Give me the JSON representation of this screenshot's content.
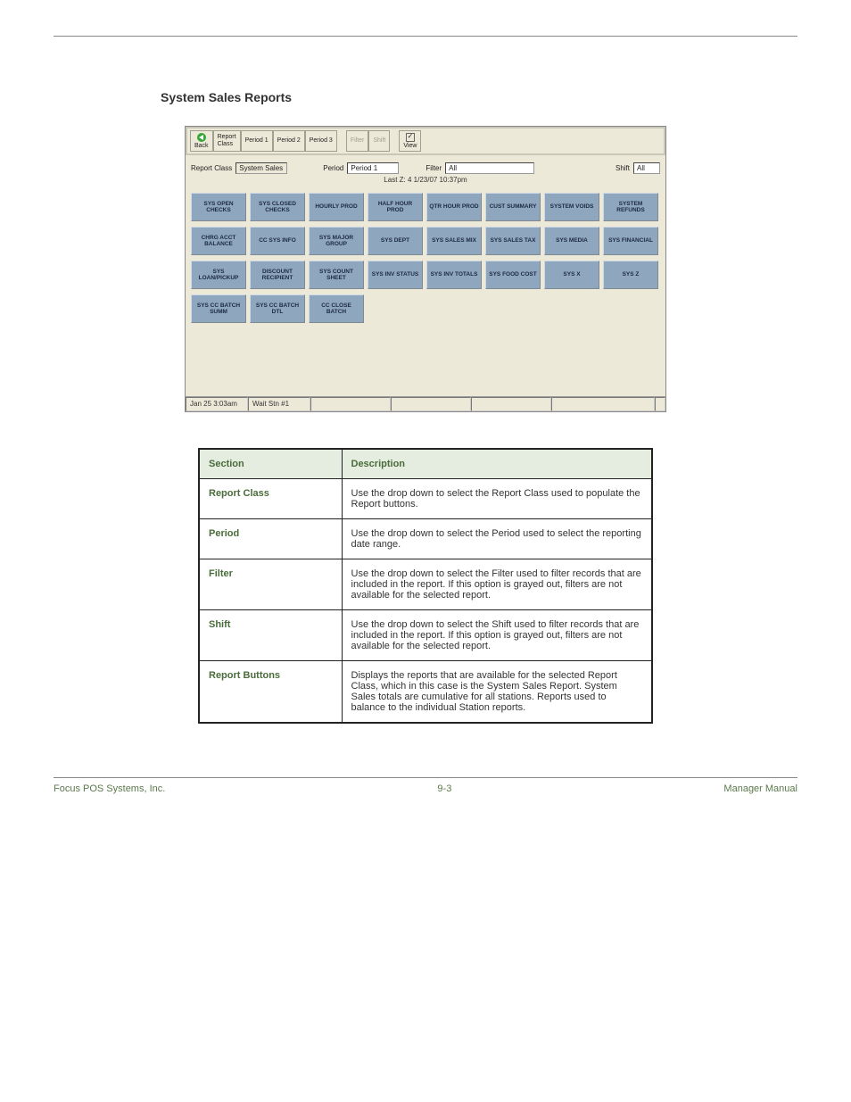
{
  "page": {
    "section_title": "System Sales Reports",
    "footer_left": "Focus POS Systems, Inc.",
    "footer_center": "9-3",
    "footer_right": "Manager Manual"
  },
  "app": {
    "toolbar": {
      "back": "Back",
      "report_class": "Report\nClass",
      "period1": "Period 1",
      "period2": "Period 2",
      "period3": "Period 3",
      "filter": "Filter",
      "shift": "Shift",
      "view": "View"
    },
    "filters": {
      "report_class_lbl": "Report Class",
      "report_class_val": "System Sales",
      "period_lbl": "Period",
      "period_val": "Period 1",
      "filter_lbl": "Filter",
      "filter_val": "All",
      "shift_lbl": "Shift",
      "shift_val": "All",
      "lastz": "Last Z: 4  1/23/07 10:37pm"
    },
    "report_buttons": [
      [
        "SYS OPEN CHECKS",
        "SYS CLOSED CHECKS",
        "HOURLY PROD",
        "HALF HOUR PROD",
        "QTR HOUR PROD",
        "CUST SUMMARY",
        "SYSTEM VOIDS",
        "SYSTEM REFUNDS"
      ],
      [
        "CHRG ACCT BALANCE",
        "CC SYS INFO",
        "SYS MAJOR GROUP",
        "SYS DEPT",
        "SYS SALES MIX",
        "SYS SALES TAX",
        "SYS MEDIA",
        "SYS FINANCIAL"
      ],
      [
        "SYS LOAN/PICKUP",
        "DISCOUNT RECIPIENT",
        "SYS COUNT SHEET",
        "SYS INV STATUS",
        "SYS INV TOTALS",
        "SYS FOOD COST",
        "SYS X",
        "SYS Z"
      ],
      [
        "SYS CC BATCH SUMM",
        "SYS CC BATCH DTL",
        "CC CLOSE BATCH"
      ]
    ],
    "status": {
      "time": "Jan 25  3:03am",
      "station": "Wait Stn #1"
    },
    "colors": {
      "window_bg": "#ece9d8",
      "button_bg": "#8fa6bf",
      "button_text": "#1a2a40"
    }
  },
  "table": {
    "headers": [
      "Section",
      "Description"
    ],
    "rows": [
      [
        "Report Class",
        "Use the drop down to select the Report Class used to populate the Report buttons."
      ],
      [
        "Period",
        "Use the drop down to select the Period used to select the reporting date range."
      ],
      [
        "Filter",
        "Use the drop down to select the Filter used to filter records that are included in the report. If this option is grayed out, filters are not available for the selected report."
      ],
      [
        "Shift",
        "Use the drop down to select the Shift used to filter records that are included in the report. If this option is grayed out, filters are not available for the selected report."
      ],
      [
        "Report Buttons",
        "Displays the reports that are available for the selected Report Class, which in this case is the System Sales Report. System Sales totals are cumulative for all stations. Reports used to balance to the individual Station reports."
      ]
    ]
  }
}
